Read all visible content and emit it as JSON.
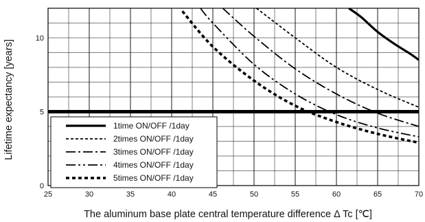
{
  "chart_data": {
    "type": "line",
    "xlabel": "The aluminum base plate central temperature difference Δ Tc [℃]",
    "ylabel": "Lifetime expectancy [years]",
    "xlim": [
      25,
      70
    ],
    "ylim": [
      0,
      12
    ],
    "x_ticks": [
      "25",
      "30",
      "35",
      "40",
      "45",
      "50",
      "55",
      "60",
      "65",
      "70"
    ],
    "y_ticks": [
      "0",
      "5",
      "10"
    ],
    "grid": "on (minor every 2.5 ℃ and 1 year)",
    "legend_position": "bottom-left",
    "reference_line": {
      "y": 5,
      "style": "thick solid"
    },
    "series": [
      {
        "name": "1time  ON/OFF /1day",
        "style": "solid",
        "points": [
          [
            61.5,
            12.0
          ],
          [
            63,
            11.4
          ],
          [
            65,
            10.4
          ],
          [
            67,
            9.6
          ],
          [
            69,
            8.9
          ],
          [
            70,
            8.5
          ]
        ]
      },
      {
        "name": "2times ON/OFF /1day",
        "style": "dashed",
        "points": [
          [
            50.3,
            12.0
          ],
          [
            55,
            10.0
          ],
          [
            60,
            8.0
          ],
          [
            65,
            6.5
          ],
          [
            70,
            5.3
          ]
        ]
      },
      {
        "name": "3times ON/OFF /1day",
        "style": "dash-dot",
        "points": [
          [
            46.2,
            12.0
          ],
          [
            50,
            10.1
          ],
          [
            55,
            7.9
          ],
          [
            60,
            6.2
          ],
          [
            65,
            4.9
          ],
          [
            70,
            4.0
          ]
        ]
      },
      {
        "name": "4times ON/OFF /1day",
        "style": "dash-dot-dot",
        "points": [
          [
            43.5,
            12.0
          ],
          [
            45,
            11.0
          ],
          [
            50,
            8.2
          ],
          [
            55,
            6.2
          ],
          [
            60,
            4.8
          ],
          [
            65,
            3.9
          ],
          [
            70,
            3.3
          ]
        ]
      },
      {
        "name": "5times ON/OFF /1day",
        "style": "bold dotted",
        "points": [
          [
            41.3,
            11.8
          ],
          [
            45,
            9.4
          ],
          [
            50,
            7.1
          ],
          [
            55,
            5.4
          ],
          [
            60,
            4.3
          ],
          [
            65,
            3.5
          ],
          [
            70,
            2.9
          ]
        ]
      }
    ]
  }
}
